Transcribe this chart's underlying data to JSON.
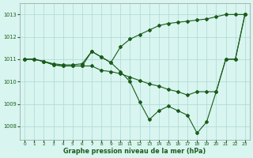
{
  "line1_x": [
    0,
    1,
    2,
    3,
    4,
    5,
    6,
    7,
    8,
    9,
    10,
    11,
    12,
    13,
    14,
    15,
    16,
    17,
    18,
    19,
    20,
    21,
    22,
    23
  ],
  "line1_y": [
    1011.0,
    1011.0,
    1010.9,
    1010.8,
    1010.75,
    1010.75,
    1010.8,
    1011.35,
    1011.1,
    1010.85,
    1011.55,
    1011.9,
    1012.1,
    1012.3,
    1012.5,
    1012.6,
    1012.65,
    1012.7,
    1012.75,
    1012.8,
    1012.9,
    1013.0,
    1013.0,
    1013.0
  ],
  "line2_x": [
    0,
    1,
    2,
    3,
    4,
    5,
    6,
    7,
    8,
    9,
    10,
    11,
    12,
    13,
    14,
    15,
    16,
    17,
    18,
    19,
    20,
    21,
    22,
    23
  ],
  "line2_y": [
    1011.0,
    1011.0,
    1010.9,
    1010.75,
    1010.7,
    1010.7,
    1010.7,
    1010.7,
    1010.5,
    1010.45,
    1010.35,
    1010.2,
    1010.05,
    1009.9,
    1009.8,
    1009.65,
    1009.55,
    1009.4,
    1009.55,
    1009.55,
    1009.55,
    1011.0,
    1011.0,
    1013.0
  ],
  "line3_x": [
    0,
    1,
    2,
    3,
    4,
    5,
    6,
    7,
    8,
    9,
    10,
    11,
    12,
    13,
    14,
    15,
    16,
    17,
    18,
    19,
    20,
    21,
    22,
    23
  ],
  "line3_y": [
    1011.0,
    1011.0,
    1010.9,
    1010.75,
    1010.7,
    1010.7,
    1010.7,
    1011.35,
    1011.1,
    1010.85,
    1010.45,
    1010.0,
    1009.1,
    1008.3,
    1008.7,
    1008.9,
    1008.7,
    1008.5,
    1007.7,
    1008.2,
    1009.55,
    1011.0,
    1011.0,
    1013.0
  ],
  "line_color": "#1a5c1a",
  "marker": "D",
  "marker_size": 2.0,
  "bg_color": "#d8f5f0",
  "grid_color": "#aed8d4",
  "xlabel": "Graphe pression niveau de la mer (hPa)",
  "ylim": [
    1007.4,
    1013.5
  ],
  "xlim": [
    -0.5,
    23.5
  ],
  "yticks": [
    1008,
    1009,
    1010,
    1011,
    1012,
    1013
  ],
  "xticks": [
    0,
    1,
    2,
    3,
    4,
    5,
    6,
    7,
    8,
    9,
    10,
    11,
    12,
    13,
    14,
    15,
    16,
    17,
    18,
    19,
    20,
    21,
    22,
    23
  ]
}
